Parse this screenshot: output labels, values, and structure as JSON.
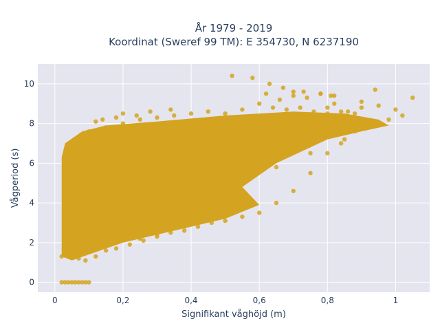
{
  "chart_data": {
    "type": "scatter",
    "title_line1": "År 1979 - 2019",
    "title_line2": "Koordinat (Sweref 99 TM): E 354730, N 6237190",
    "xlabel": "Signifikant våghöjd (m)",
    "ylabel": "Vågperiod (s)",
    "xlim": [
      -0.05,
      1.1
    ],
    "ylim": [
      -0.5,
      11
    ],
    "xticks": [
      0,
      0.2,
      0.4,
      0.6,
      0.8,
      1
    ],
    "xtick_labels": [
      "0",
      "0,2",
      "0,4",
      "0,6",
      "0,8",
      "1"
    ],
    "yticks": [
      0,
      2,
      4,
      6,
      8,
      10
    ],
    "ytick_labels": [
      "0",
      "2",
      "4",
      "6",
      "8",
      "10"
    ],
    "grid": true,
    "marker_color": "#D4A420",
    "plot_bg": "#E5E5EF",
    "grid_color": "#ffffff",
    "series": [
      {
        "x": [
          0.02,
          0.03,
          0.04,
          0.05,
          0.06,
          0.07,
          0.08,
          0.09,
          0.1,
          0.02,
          0.03,
          0.05,
          0.07,
          0.09,
          0.12,
          0.15,
          0.18,
          0.22,
          0.26,
          0.3,
          0.34,
          0.38,
          0.42,
          0.46,
          0.5,
          0.55,
          0.6,
          0.65,
          0.7,
          0.75,
          0.8,
          0.84,
          0.88,
          0.92,
          0.95,
          0.98,
          1.02,
          1.05,
          0.62,
          0.66,
          0.7,
          0.74,
          0.78,
          0.82,
          0.86,
          0.9,
          0.94,
          0.64,
          0.68,
          0.72,
          0.76,
          0.8,
          0.84,
          0.88,
          0.6,
          0.55,
          0.5,
          0.45,
          0.4,
          0.35,
          0.3,
          0.25,
          0.2,
          0.15,
          0.1,
          0.08,
          0.06,
          0.05,
          0.04,
          0.03,
          0.12,
          0.16,
          0.2,
          0.24,
          0.28,
          0.32,
          0.36,
          0.4,
          0.44,
          0.48,
          0.52,
          0.56,
          0.6,
          0.64,
          0.68,
          0.72,
          0.76,
          0.8,
          0.84,
          0.35,
          0.45,
          0.55,
          0.65,
          0.75,
          0.85,
          0.52,
          0.58,
          0.7,
          0.78,
          0.82,
          0.9,
          0.95,
          1.0,
          0.63,
          0.67,
          0.73,
          0.81,
          0.25,
          0.3,
          0.38,
          0.42,
          0.28,
          0.34,
          0.2,
          0.24,
          0.18,
          0.14,
          0.12
        ],
        "y": [
          0,
          0,
          0,
          0,
          0,
          0,
          0,
          0,
          0,
          1.3,
          1.5,
          1.4,
          1.2,
          1.1,
          1.3,
          1.6,
          1.7,
          1.9,
          2.1,
          2.3,
          2.5,
          2.6,
          2.8,
          3.0,
          3.1,
          3.3,
          3.5,
          4.0,
          4.6,
          5.5,
          6.5,
          7.0,
          7.6,
          7.8,
          8.0,
          8.2,
          8.4,
          9.3,
          9.5,
          9.2,
          9.4,
          9.3,
          9.5,
          9.0,
          8.6,
          8.8,
          9.7,
          8.8,
          8.7,
          8.8,
          8.6,
          8.8,
          8.6,
          8.5,
          9.0,
          8.7,
          8.5,
          8.6,
          8.5,
          8.4,
          8.3,
          8.2,
          8.0,
          7.8,
          7.6,
          7.2,
          6.9,
          6.5,
          6.0,
          5.5,
          6.5,
          7.0,
          7.2,
          7.4,
          7.5,
          7.7,
          7.8,
          7.9,
          8.0,
          8.1,
          8.1,
          8.2,
          8.2,
          8.3,
          8.3,
          8.4,
          8.4,
          8.5,
          8.4,
          4.0,
          4.5,
          5.0,
          5.8,
          6.5,
          7.2,
          10.4,
          10.3,
          9.6,
          9.5,
          9.4,
          9.1,
          8.9,
          8.7,
          10.0,
          9.8,
          9.6,
          9.4,
          2.2,
          2.4,
          2.8,
          3.0,
          8.6,
          8.7,
          8.5,
          8.4,
          8.3,
          8.2,
          8.1
        ]
      }
    ]
  }
}
